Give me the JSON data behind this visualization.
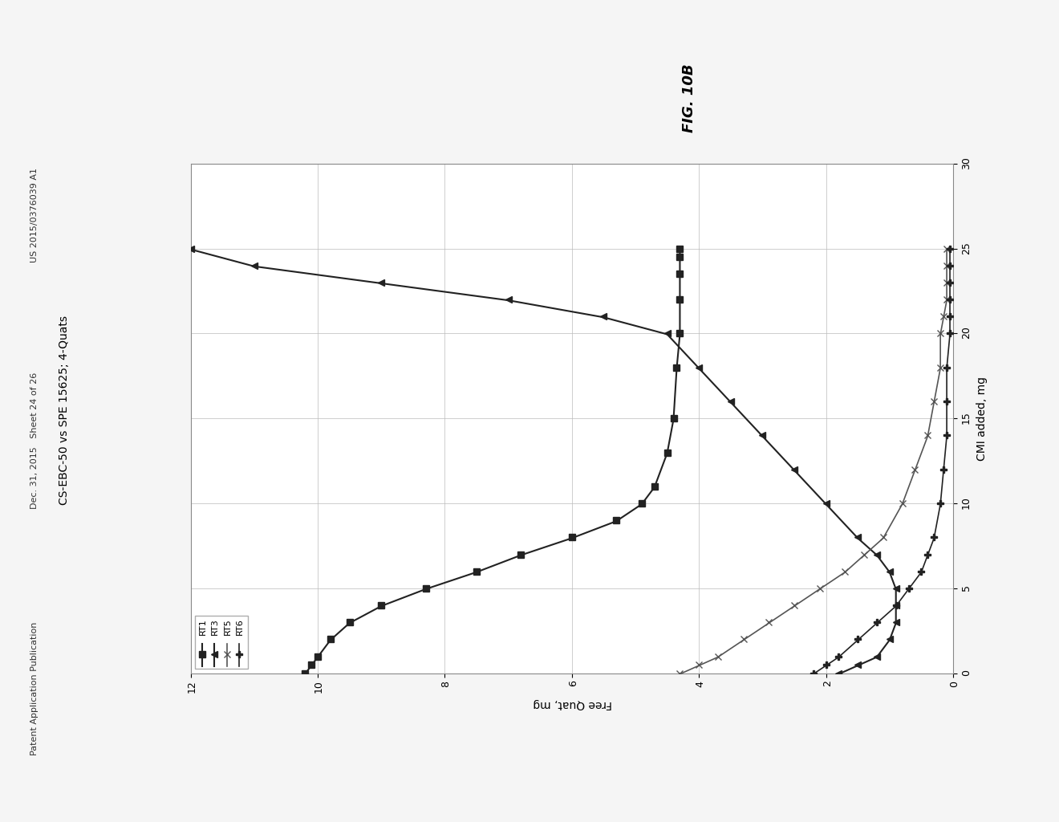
{
  "title": "CS-EBC-50 vs SPE 15625; 4-Quats",
  "xlabel": "Free Quat, mg",
  "ylabel": "CMI added, mg",
  "fig_label": "FIG. 10B",
  "xlim": [
    0,
    12
  ],
  "ylim": [
    0,
    30
  ],
  "xticks": [
    0,
    2,
    4,
    6,
    8,
    10,
    12
  ],
  "yticks": [
    0,
    5,
    10,
    15,
    20,
    25,
    30
  ],
  "background_color": "#f5f5f5",
  "plot_bg_color": "#ffffff",
  "grid_color": "#bbbbbb",
  "series": [
    {
      "name": "RT1",
      "marker": "s",
      "color": "#222222",
      "linewidth": 1.5,
      "markersize": 6,
      "x": [
        10.2,
        10.1,
        10.0,
        9.8,
        9.5,
        9.0,
        8.3,
        7.5,
        6.8,
        6.0,
        5.3,
        4.9,
        4.7,
        4.5,
        4.4,
        4.35,
        4.3,
        4.3,
        4.3,
        4.3,
        4.3
      ],
      "y": [
        0,
        0.5,
        1.0,
        2.0,
        3.0,
        4.0,
        5.0,
        6.0,
        7.0,
        8.0,
        9.0,
        10.0,
        11.0,
        13.0,
        15.0,
        18.0,
        20.0,
        22.0,
        23.5,
        24.5,
        25.0
      ]
    },
    {
      "name": "RT3",
      "marker": "^",
      "color": "#222222",
      "linewidth": 1.5,
      "markersize": 6,
      "x": [
        1.8,
        1.5,
        1.2,
        1.0,
        0.9,
        0.9,
        0.9,
        1.0,
        1.2,
        1.5,
        2.0,
        2.5,
        3.0,
        3.5,
        4.0,
        4.5,
        5.5,
        7.0,
        9.0,
        11.0,
        12.0
      ],
      "y": [
        0,
        0.5,
        1.0,
        2.0,
        3.0,
        4.0,
        5.0,
        6.0,
        7.0,
        8.0,
        10.0,
        12.0,
        14.0,
        16.0,
        18.0,
        20.0,
        21.0,
        22.0,
        23.0,
        24.0,
        25.0
      ]
    },
    {
      "name": "RT5",
      "marker": "x",
      "color": "#555555",
      "linewidth": 1.2,
      "markersize": 6,
      "x": [
        4.3,
        4.0,
        3.7,
        3.3,
        2.9,
        2.5,
        2.1,
        1.7,
        1.4,
        1.1,
        0.8,
        0.6,
        0.4,
        0.3,
        0.2,
        0.2,
        0.15,
        0.1,
        0.1,
        0.1,
        0.1
      ],
      "y": [
        0,
        0.5,
        1.0,
        2.0,
        3.0,
        4.0,
        5.0,
        6.0,
        7.0,
        8.0,
        10.0,
        12.0,
        14.0,
        16.0,
        18.0,
        20.0,
        21.0,
        22.0,
        23.0,
        24.0,
        25.0
      ]
    },
    {
      "name": "RT6",
      "marker": "P",
      "color": "#222222",
      "linewidth": 1.2,
      "markersize": 6,
      "x": [
        2.2,
        2.0,
        1.8,
        1.5,
        1.2,
        0.9,
        0.7,
        0.5,
        0.4,
        0.3,
        0.2,
        0.15,
        0.1,
        0.1,
        0.1,
        0.05,
        0.05,
        0.05,
        0.05,
        0.05,
        0.05
      ],
      "y": [
        0,
        0.5,
        1.0,
        2.0,
        3.0,
        4.0,
        5.0,
        6.0,
        7.0,
        8.0,
        10.0,
        12.0,
        14.0,
        16.0,
        18.0,
        20.0,
        21.0,
        22.0,
        23.0,
        24.0,
        25.0
      ]
    }
  ],
  "text_color": "#000000",
  "header_left": "Patent Application Publication",
  "header_mid": "Dec. 31, 2015   Sheet 24 of 26",
  "header_right": "US 2015/0376039 A1",
  "outer_border_color": "#888888"
}
